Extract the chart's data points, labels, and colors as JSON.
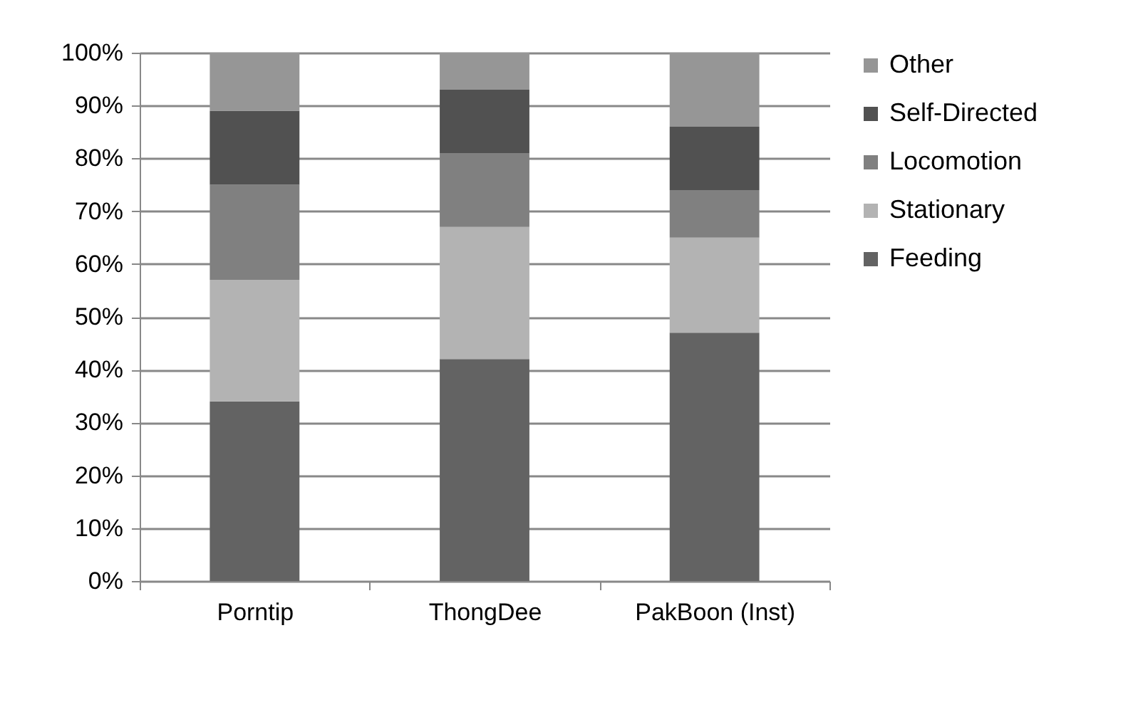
{
  "chart_data": {
    "type": "bar",
    "stacked": true,
    "categories": [
      "Porntip",
      "ThongDee",
      "PakBoon (Inst)"
    ],
    "series": [
      {
        "name": "Feeding",
        "color": "#636363",
        "values": [
          34,
          42,
          47
        ]
      },
      {
        "name": "Stationary",
        "color": "#b3b3b3",
        "values": [
          23,
          25,
          18
        ]
      },
      {
        "name": "Locomotion",
        "color": "#808080",
        "values": [
          18,
          14,
          9
        ]
      },
      {
        "name": "Self-Directed",
        "color": "#515151",
        "values": [
          14,
          12,
          12
        ]
      },
      {
        "name": "Other",
        "color": "#969696",
        "values": [
          11,
          7,
          14
        ]
      }
    ],
    "ylim": [
      0,
      100
    ],
    "yticks": [
      {
        "value": 0,
        "label": "0%"
      },
      {
        "value": 10,
        "label": "10%"
      },
      {
        "value": 20,
        "label": "20%"
      },
      {
        "value": 30,
        "label": "30%"
      },
      {
        "value": 40,
        "label": "40%"
      },
      {
        "value": 50,
        "label": "50%"
      },
      {
        "value": 60,
        "label": "60%"
      },
      {
        "value": 70,
        "label": "70%"
      },
      {
        "value": 80,
        "label": "80%"
      },
      {
        "value": 90,
        "label": "90%"
      },
      {
        "value": 100,
        "label": "100%"
      }
    ],
    "grid": "y",
    "legend": "right"
  }
}
